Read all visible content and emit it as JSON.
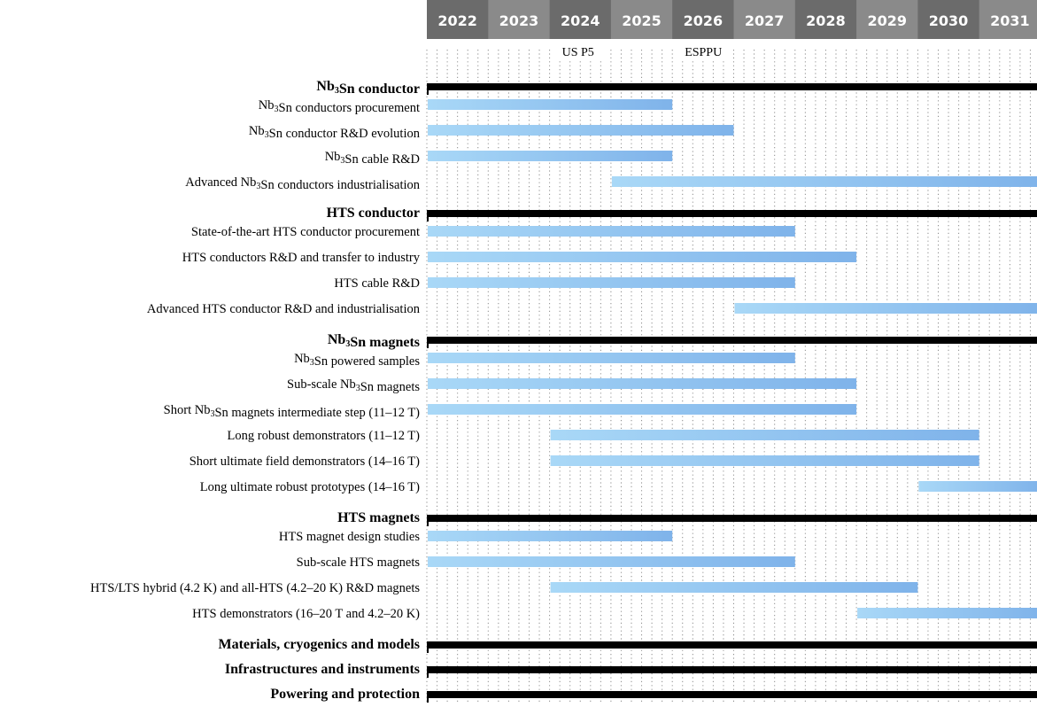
{
  "chart_data": {
    "type": "gantt",
    "years": [
      "2022",
      "2023",
      "2024",
      "2025",
      "2026",
      "2027",
      "2028",
      "2029",
      "2030",
      "2031"
    ],
    "milestones": [
      {
        "label": "US P5",
        "year": 2024
      },
      {
        "label": "ESPPU",
        "year": 2026
      }
    ],
    "colors": {
      "header_dark": "#6b6b6b",
      "header_light": "#8a8a8a",
      "group_bar": "#000000",
      "task_start": "#a9d8f7",
      "task_end": "#7fb3ea"
    },
    "groups": [
      {
        "name": "Nb3Sn conductor",
        "name_parts": [
          [
            "Nb",
            ""
          ],
          [
            "3",
            "sub"
          ],
          [
            "Sn conductor",
            ""
          ]
        ],
        "tasks": [
          {
            "name": "Nb3Sn conductors procurement",
            "name_parts": [
              [
                "Nb",
                ""
              ],
              [
                "3",
                "sub"
              ],
              [
                "Sn conductors procurement",
                ""
              ]
            ],
            "start": 2022,
            "end": 2026
          },
          {
            "name": "Nb3Sn conductor R&D evolution",
            "name_parts": [
              [
                "Nb",
                ""
              ],
              [
                "3",
                "sub"
              ],
              [
                "Sn conductor R&D evolution",
                ""
              ]
            ],
            "start": 2022,
            "end": 2027
          },
          {
            "name": "Nb3Sn cable R&D",
            "name_parts": [
              [
                "Nb",
                ""
              ],
              [
                "3",
                "sub"
              ],
              [
                "Sn cable R&D",
                ""
              ]
            ],
            "start": 2022,
            "end": 2026
          },
          {
            "name": "Advanced Nb3Sn conductors industrialisation",
            "name_parts": [
              [
                "Advanced Nb",
                ""
              ],
              [
                "3",
                "sub"
              ],
              [
                "Sn conductors industrialisation",
                ""
              ]
            ],
            "start": 2025,
            "end": 2032
          }
        ]
      },
      {
        "name": "HTS conductor",
        "name_parts": [
          [
            "HTS conductor",
            ""
          ]
        ],
        "tasks": [
          {
            "name": "State-of-the-art HTS conductor procurement",
            "name_parts": [
              [
                "State-of-the-art HTS conductor procurement",
                ""
              ]
            ],
            "start": 2022,
            "end": 2028
          },
          {
            "name": "HTS conductors R&D and transfer to industry",
            "name_parts": [
              [
                "HTS conductors R&D and transfer to industry",
                ""
              ]
            ],
            "start": 2022,
            "end": 2029
          },
          {
            "name": "HTS cable R&D",
            "name_parts": [
              [
                "HTS cable R&D",
                ""
              ]
            ],
            "start": 2022,
            "end": 2028
          },
          {
            "name": "Advanced HTS conductor R&D and industrialisation",
            "name_parts": [
              [
                "Advanced HTS conductor R&D and industrialisation",
                ""
              ]
            ],
            "start": 2027,
            "end": 2032
          }
        ]
      },
      {
        "name": "Nb3Sn magnets",
        "name_parts": [
          [
            "Nb",
            ""
          ],
          [
            "3",
            "sub"
          ],
          [
            "Sn magnets",
            ""
          ]
        ],
        "tasks": [
          {
            "name": "Nb3Sn powered samples",
            "name_parts": [
              [
                "Nb",
                ""
              ],
              [
                "3",
                "sub"
              ],
              [
                "Sn powered samples",
                ""
              ]
            ],
            "start": 2022,
            "end": 2028
          },
          {
            "name": "Sub-scale Nb3Sn magnets",
            "name_parts": [
              [
                "Sub-scale Nb",
                ""
              ],
              [
                "3",
                "sub"
              ],
              [
                "Sn magnets",
                ""
              ]
            ],
            "start": 2022,
            "end": 2029
          },
          {
            "name": "Short Nb3Sn magnets intermediate step (11–12 T)",
            "name_parts": [
              [
                "Short Nb",
                ""
              ],
              [
                "3",
                "sub"
              ],
              [
                "Sn magnets intermediate step (11–12 T)",
                ""
              ]
            ],
            "start": 2022,
            "end": 2029
          },
          {
            "name": "Long robust demonstrators (11–12 T)",
            "name_parts": [
              [
                "Long robust demonstrators (11–12 T)",
                ""
              ]
            ],
            "start": 2024,
            "end": 2031
          },
          {
            "name": "Short ultimate field demonstrators (14–16 T)",
            "name_parts": [
              [
                "Short ultimate field demonstrators (14–16 T)",
                ""
              ]
            ],
            "start": 2024,
            "end": 2031
          },
          {
            "name": "Long ultimate robust prototypes (14–16 T)",
            "name_parts": [
              [
                "Long ultimate robust prototypes (14–16 T)",
                ""
              ]
            ],
            "start": 2030,
            "end": 2032
          }
        ]
      },
      {
        "name": "HTS magnets",
        "name_parts": [
          [
            "HTS magnets",
            ""
          ]
        ],
        "tasks": [
          {
            "name": "HTS magnet design studies",
            "name_parts": [
              [
                "HTS magnet design studies",
                ""
              ]
            ],
            "start": 2022,
            "end": 2026
          },
          {
            "name": "Sub-scale HTS magnets",
            "name_parts": [
              [
                "Sub-scale HTS magnets",
                ""
              ]
            ],
            "start": 2022,
            "end": 2028
          },
          {
            "name": "HTS/LTS hybrid (4.2 K) and all-HTS (4.2–20 K) R&D magnets",
            "name_parts": [
              [
                "HTS/LTS hybrid (4.2 K) and all-HTS (4.2–20 K) R&D magnets",
                ""
              ]
            ],
            "start": 2024,
            "end": 2030
          },
          {
            "name": "HTS demonstrators (16–20 T and 4.2–20 K)",
            "name_parts": [
              [
                "HTS demonstrators (16–20 T and 4.2–20 K)",
                ""
              ]
            ],
            "start": 2029,
            "end": 2032
          }
        ]
      },
      {
        "name": "Materials, cryogenics and models",
        "name_parts": [
          [
            "Materials, cryogenics and models",
            ""
          ]
        ],
        "tasks": []
      },
      {
        "name": "Infrastructures and instruments",
        "name_parts": [
          [
            "Infrastructures and instruments",
            ""
          ]
        ],
        "tasks": []
      },
      {
        "name": "Powering and protection",
        "name_parts": [
          [
            "Powering and protection",
            ""
          ]
        ],
        "tasks": []
      }
    ]
  }
}
